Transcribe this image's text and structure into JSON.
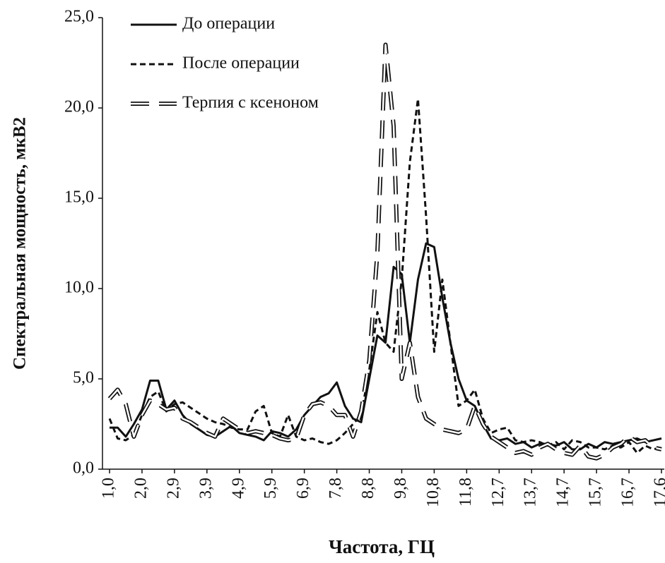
{
  "chart_data": {
    "type": "line",
    "ylabel": "Спектральная мощность, мкВ2",
    "xlabel": "Частота, ГЦ",
    "categories": [
      "1,0",
      null,
      null,
      null,
      "2,0",
      null,
      null,
      null,
      "2,9",
      null,
      null,
      null,
      "3,9",
      null,
      null,
      null,
      "4,9",
      null,
      null,
      null,
      "5,9",
      null,
      null,
      null,
      "6,9",
      null,
      null,
      null,
      "7,8",
      null,
      null,
      null,
      "8,8",
      null,
      null,
      null,
      "9,8",
      null,
      null,
      null,
      "10,8",
      null,
      null,
      null,
      "11,8",
      null,
      null,
      null,
      "12,7",
      null,
      null,
      null,
      "13,7",
      null,
      null,
      null,
      "14,7",
      null,
      null,
      null,
      "15,7",
      null,
      null,
      null,
      "16,7",
      null,
      null,
      null,
      "17,6"
    ],
    "series": [
      {
        "name": "До операции",
        "color": "#111111",
        "line_style": "solid",
        "values": [
          2.3,
          2.3,
          1.8,
          2.5,
          3.3,
          4.9,
          4.9,
          3.3,
          3.8,
          3.0,
          2.5,
          2.2,
          1.9,
          1.8,
          2.1,
          2.4,
          2.0,
          1.9,
          1.8,
          1.6,
          2.1,
          2.0,
          1.8,
          2.2,
          3.0,
          3.5,
          4.0,
          4.2,
          4.8,
          3.5,
          2.8,
          2.6,
          5.0,
          7.4,
          7.0,
          11.2,
          10.8,
          7.0,
          10.5,
          12.5,
          12.3,
          9.5,
          7.0,
          5.0,
          3.8,
          3.5,
          2.5,
          1.7,
          1.6,
          1.7,
          1.4,
          1.5,
          1.2,
          1.4,
          1.4,
          1.3,
          1.5,
          1.1,
          1.1,
          1.4,
          1.2,
          1.5,
          1.4,
          1.5,
          1.6,
          1.7,
          1.5,
          1.6,
          1.7
        ]
      },
      {
        "name": "После операции",
        "color": "#111111",
        "line_style": "dashed",
        "values": [
          2.8,
          1.7,
          1.6,
          1.9,
          3.0,
          4.0,
          4.3,
          3.2,
          3.6,
          3.7,
          3.4,
          3.1,
          2.8,
          2.6,
          2.5,
          2.3,
          2.2,
          2.2,
          3.2,
          3.5,
          2.0,
          1.8,
          3.0,
          1.8,
          1.6,
          1.7,
          1.5,
          1.4,
          1.6,
          2.0,
          2.5,
          3.0,
          5.5,
          8.7,
          7.0,
          6.5,
          10.5,
          17.0,
          20.5,
          14.0,
          6.5,
          10.5,
          7.0,
          3.5,
          3.8,
          4.4,
          2.8,
          2.0,
          2.2,
          2.3,
          1.6,
          1.5,
          1.6,
          1.5,
          1.3,
          1.5,
          1.1,
          1.6,
          1.5,
          1.2,
          1.2,
          1.1,
          1.3,
          1.2,
          1.5,
          0.9,
          1.3,
          1.1,
          1.2
        ]
      },
      {
        "name": "Терпия с ксеноном",
        "color": "#111111",
        "line_style": "long-dashed-double",
        "values": [
          3.9,
          4.4,
          3.6,
          1.8,
          3.0,
          3.8,
          3.6,
          3.3,
          3.4,
          2.8,
          2.6,
          2.3,
          2.0,
          1.8,
          2.8,
          2.5,
          2.2,
          2.0,
          2.1,
          2.0,
          1.9,
          1.7,
          1.6,
          1.7,
          3.0,
          3.6,
          3.7,
          3.5,
          3.0,
          3.0,
          1.8,
          3.2,
          6.0,
          12.0,
          23.5,
          19.0,
          5.0,
          7.0,
          4.0,
          2.8,
          2.5,
          2.2,
          2.1,
          2.0,
          2.2,
          3.5,
          2.5,
          1.8,
          1.5,
          1.2,
          0.9,
          1.0,
          0.8,
          1.2,
          1.4,
          1.1,
          0.9,
          0.8,
          1.3,
          0.7,
          0.6,
          0.8,
          1.2,
          1.4,
          1.8,
          1.5,
          1.6,
          1.2,
          1.1
        ]
      }
    ],
    "ylim": [
      0,
      25
    ],
    "yticks": [
      {
        "value": 0,
        "label": "0,0"
      },
      {
        "value": 5,
        "label": "5,0"
      },
      {
        "value": 10,
        "label": "10,0"
      },
      {
        "value": 15,
        "label": "15,0"
      },
      {
        "value": 20,
        "label": "20,0"
      },
      {
        "value": 25,
        "label": "25,0"
      }
    ],
    "grid": false,
    "legend": "upper-left"
  }
}
